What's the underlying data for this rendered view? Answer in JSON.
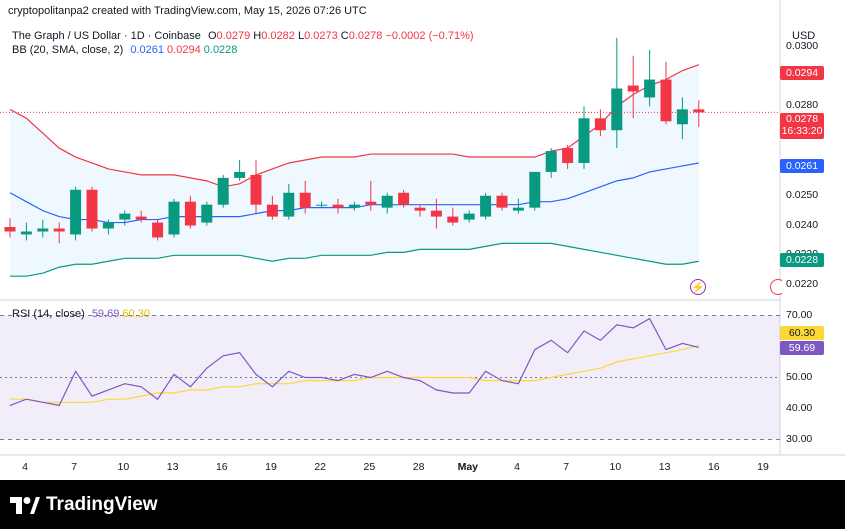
{
  "caption": "cryptopolitanpa2 created with TradingView.com, May 15, 2026 07:26 UTC",
  "brand": "TradingView",
  "brand_icon": "tradingview-logo-icon",
  "legend": {
    "symbol": "The Graph / US Dollar · 1D · Coinbase",
    "open_label": "O",
    "open": "0.0279",
    "high_label": "H",
    "high": "0.0282",
    "low_label": "L",
    "low": "0.0273",
    "close_label": "C",
    "close": "0.0278",
    "change": "−0.0002 (−0.71%)",
    "bb_label": "BB (20, SMA, close, 2)",
    "bb_mid": "0.0261",
    "bb_upper": "0.0294",
    "bb_lower": "0.0228",
    "rsi_label": "RSI (14, close)",
    "rsi_value": "59.69",
    "rsi_ma": "60.30"
  },
  "currency": "USD",
  "price_axis": [
    "0.0300",
    "0.0290",
    "0.0280",
    "0.0270",
    "0.0260",
    "0.0250",
    "0.0240",
    "0.0230",
    "0.0220"
  ],
  "rsi_axis": [
    "70.00",
    "50.00",
    "40.00",
    "30.00"
  ],
  "tags": {
    "bb_upper": "0.0294",
    "last_price": "0.0278",
    "countdown": "16:33:20",
    "bb_mid": "0.0261",
    "bb_lower": "0.0228",
    "rsi_ma": "60.30",
    "rsi": "59.69"
  },
  "colors": {
    "up": "#089981",
    "down": "#f23645",
    "bb_mid": "#2962ff",
    "bb_upper": "#f23645",
    "bb_lower": "#089981",
    "rsi": "#7e57c2",
    "rsi_ma": "#fdd835"
  },
  "x_axis": [
    "4",
    "7",
    "10",
    "13",
    "16",
    "19",
    "22",
    "25",
    "28",
    "May",
    "4",
    "7",
    "10",
    "13",
    "16",
    "19"
  ],
  "chart_data": {
    "type": "candlestick",
    "x_ticks": [
      "4",
      "7",
      "10",
      "13",
      "16",
      "19",
      "22",
      "25",
      "28",
      "May",
      "4",
      "7",
      "10",
      "13",
      "16",
      "19"
    ],
    "candles": [
      {
        "o": 0.02395,
        "h": 0.02425,
        "l": 0.0236,
        "c": 0.0238
      },
      {
        "o": 0.0237,
        "h": 0.0241,
        "l": 0.0235,
        "c": 0.0238
      },
      {
        "o": 0.0238,
        "h": 0.0242,
        "l": 0.0236,
        "c": 0.0239
      },
      {
        "o": 0.0239,
        "h": 0.0241,
        "l": 0.0234,
        "c": 0.0238
      },
      {
        "o": 0.0237,
        "h": 0.0253,
        "l": 0.0235,
        "c": 0.0252
      },
      {
        "o": 0.0252,
        "h": 0.0253,
        "l": 0.0238,
        "c": 0.0239
      },
      {
        "o": 0.0239,
        "h": 0.0242,
        "l": 0.0237,
        "c": 0.0241
      },
      {
        "o": 0.0242,
        "h": 0.0245,
        "l": 0.024,
        "c": 0.0244
      },
      {
        "o": 0.0243,
        "h": 0.0245,
        "l": 0.0241,
        "c": 0.0242
      },
      {
        "o": 0.0241,
        "h": 0.0242,
        "l": 0.0235,
        "c": 0.0236
      },
      {
        "o": 0.0237,
        "h": 0.0249,
        "l": 0.0236,
        "c": 0.0248
      },
      {
        "o": 0.0248,
        "h": 0.025,
        "l": 0.0239,
        "c": 0.024
      },
      {
        "o": 0.0241,
        "h": 0.0248,
        "l": 0.024,
        "c": 0.0247
      },
      {
        "o": 0.0247,
        "h": 0.0257,
        "l": 0.0246,
        "c": 0.0256
      },
      {
        "o": 0.0256,
        "h": 0.0262,
        "l": 0.0255,
        "c": 0.0258
      },
      {
        "o": 0.0257,
        "h": 0.0262,
        "l": 0.0244,
        "c": 0.0247
      },
      {
        "o": 0.0247,
        "h": 0.025,
        "l": 0.0242,
        "c": 0.0243
      },
      {
        "o": 0.0243,
        "h": 0.0254,
        "l": 0.0242,
        "c": 0.0251
      },
      {
        "o": 0.0251,
        "h": 0.0255,
        "l": 0.0244,
        "c": 0.0246
      },
      {
        "o": 0.0247,
        "h": 0.0248,
        "l": 0.0246,
        "c": 0.0247
      },
      {
        "o": 0.0247,
        "h": 0.0249,
        "l": 0.0244,
        "c": 0.0246
      },
      {
        "o": 0.0246,
        "h": 0.0248,
        "l": 0.0245,
        "c": 0.0247
      },
      {
        "o": 0.0248,
        "h": 0.0255,
        "l": 0.0245,
        "c": 0.0247
      },
      {
        "o": 0.0246,
        "h": 0.0251,
        "l": 0.0244,
        "c": 0.025
      },
      {
        "o": 0.0251,
        "h": 0.0252,
        "l": 0.0246,
        "c": 0.0247
      },
      {
        "o": 0.0246,
        "h": 0.0247,
        "l": 0.0243,
        "c": 0.0245
      },
      {
        "o": 0.0245,
        "h": 0.0249,
        "l": 0.0239,
        "c": 0.0243
      },
      {
        "o": 0.0243,
        "h": 0.0246,
        "l": 0.024,
        "c": 0.0241
      },
      {
        "o": 0.0242,
        "h": 0.0245,
        "l": 0.0241,
        "c": 0.0244
      },
      {
        "o": 0.0243,
        "h": 0.0251,
        "l": 0.0242,
        "c": 0.025
      },
      {
        "o": 0.025,
        "h": 0.0251,
        "l": 0.0245,
        "c": 0.0246
      },
      {
        "o": 0.0245,
        "h": 0.0249,
        "l": 0.0244,
        "c": 0.0246
      },
      {
        "o": 0.0246,
        "h": 0.0258,
        "l": 0.0245,
        "c": 0.0258
      },
      {
        "o": 0.0258,
        "h": 0.0266,
        "l": 0.0256,
        "c": 0.0265
      },
      {
        "o": 0.0266,
        "h": 0.0267,
        "l": 0.0259,
        "c": 0.0261
      },
      {
        "o": 0.0261,
        "h": 0.028,
        "l": 0.0259,
        "c": 0.0276
      },
      {
        "o": 0.0276,
        "h": 0.0279,
        "l": 0.027,
        "c": 0.0272
      },
      {
        "o": 0.0272,
        "h": 0.0303,
        "l": 0.0266,
        "c": 0.0286
      },
      {
        "o": 0.0287,
        "h": 0.0297,
        "l": 0.0276,
        "c": 0.0285
      },
      {
        "o": 0.0283,
        "h": 0.0299,
        "l": 0.028,
        "c": 0.0289
      },
      {
        "o": 0.0289,
        "h": 0.0295,
        "l": 0.0274,
        "c": 0.0275
      },
      {
        "o": 0.0274,
        "h": 0.0283,
        "l": 0.0269,
        "c": 0.0279
      },
      {
        "o": 0.0279,
        "h": 0.0282,
        "l": 0.0273,
        "c": 0.0278
      }
    ],
    "bollinger": {
      "upper": [
        0.0279,
        0.0276,
        0.0271,
        0.0266,
        0.0263,
        0.0261,
        0.0259,
        0.0258,
        0.0257,
        0.0257,
        0.0257,
        0.0256,
        0.0255,
        0.0253,
        0.0254,
        0.0257,
        0.0259,
        0.0261,
        0.0262,
        0.0263,
        0.0263,
        0.0263,
        0.0264,
        0.0264,
        0.0264,
        0.0264,
        0.0264,
        0.0264,
        0.0263,
        0.0263,
        0.0263,
        0.0263,
        0.0263,
        0.0265,
        0.0266,
        0.027,
        0.0274,
        0.028,
        0.0284,
        0.0287,
        0.0289,
        0.0292,
        0.0294
      ],
      "middle": [
        0.0251,
        0.0248,
        0.0245,
        0.0243,
        0.0242,
        0.0242,
        0.0241,
        0.0241,
        0.0242,
        0.0242,
        0.0243,
        0.0243,
        0.0243,
        0.0243,
        0.0243,
        0.0244,
        0.0245,
        0.0245,
        0.0246,
        0.0246,
        0.0246,
        0.0246,
        0.0247,
        0.0247,
        0.0247,
        0.0247,
        0.0247,
        0.0247,
        0.0247,
        0.0247,
        0.0247,
        0.0247,
        0.0248,
        0.0248,
        0.0249,
        0.0251,
        0.0253,
        0.0255,
        0.0256,
        0.0258,
        0.0259,
        0.026,
        0.0261
      ],
      "lower": [
        0.0223,
        0.0223,
        0.0224,
        0.0226,
        0.0227,
        0.0227,
        0.0228,
        0.0229,
        0.0229,
        0.0229,
        0.023,
        0.023,
        0.023,
        0.023,
        0.023,
        0.0229,
        0.0228,
        0.0229,
        0.0229,
        0.023,
        0.023,
        0.023,
        0.023,
        0.0231,
        0.0231,
        0.0232,
        0.0232,
        0.0232,
        0.0232,
        0.0233,
        0.0234,
        0.0234,
        0.0234,
        0.0234,
        0.0233,
        0.0232,
        0.0231,
        0.023,
        0.0229,
        0.0228,
        0.0227,
        0.0227,
        0.0228
      ]
    },
    "rsi": [
      41,
      43,
      42,
      41,
      52,
      44,
      46,
      48,
      47,
      43,
      51,
      47,
      53,
      57,
      58,
      51,
      47,
      52,
      50,
      50,
      49,
      51,
      50,
      52,
      50,
      49,
      46,
      45,
      45,
      52,
      49,
      48,
      59,
      62,
      58,
      65,
      62,
      67,
      66,
      69,
      59,
      61,
      59.69
    ],
    "rsi_ma": [
      43,
      43,
      42,
      42,
      42,
      42,
      43,
      43,
      44,
      45,
      45,
      46,
      46,
      47,
      47,
      48,
      48,
      48,
      49,
      49,
      49,
      49,
      50,
      50,
      50,
      50,
      50,
      50,
      50,
      49,
      49,
      49,
      49,
      50,
      51,
      52,
      53,
      55,
      56,
      57,
      58,
      59,
      60.3
    ],
    "price_range": [
      0.0215,
      0.0309
    ],
    "rsi_range": [
      25,
      75
    ],
    "rsi_bands": [
      30,
      50,
      70
    ]
  }
}
